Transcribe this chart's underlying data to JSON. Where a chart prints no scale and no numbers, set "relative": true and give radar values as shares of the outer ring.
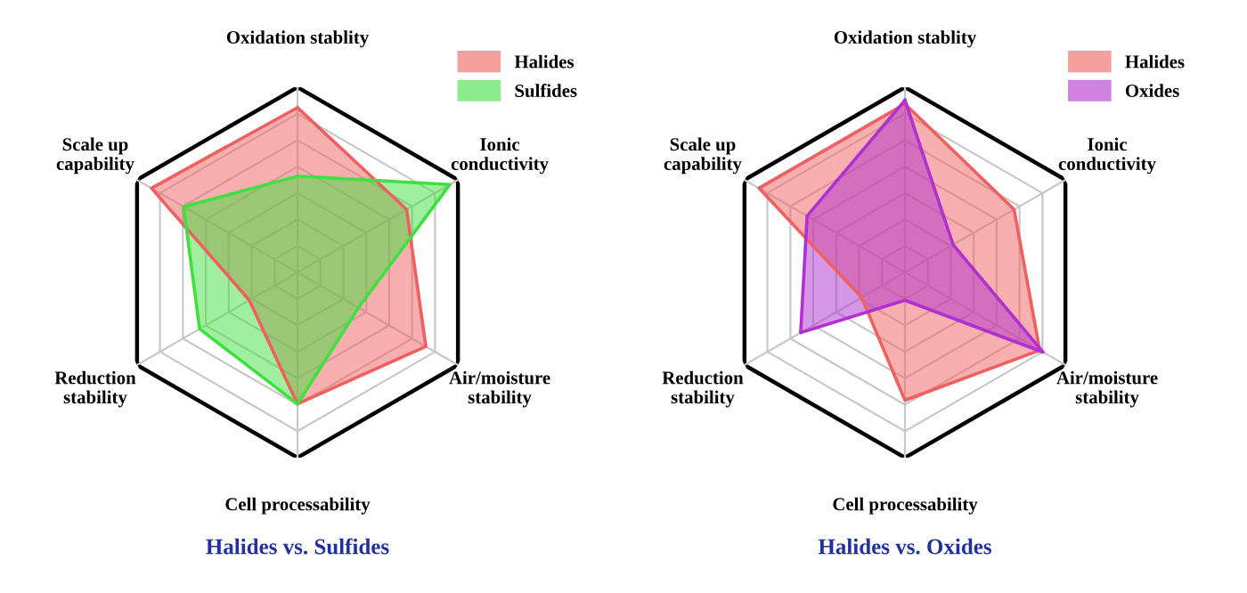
{
  "chart_data": [
    {
      "type": "radar",
      "relative": true,
      "title": "Halides vs. Sulfides",
      "legend": "top right",
      "categories": [
        "Oxidation stablity",
        "Ionic\nconductivity",
        "Air/moisture\nstability",
        "Cell processability",
        "Reduction\nstability",
        "Scale up\ncapability"
      ],
      "series": [
        {
          "name": "Halides",
          "color": "#f06060",
          "values": [
            0.89,
            0.68,
            0.8,
            0.71,
            0.3,
            0.91
          ]
        },
        {
          "name": "Sulfides",
          "color": "#40e040",
          "values": [
            0.52,
            0.95,
            0.38,
            0.71,
            0.61,
            0.71
          ]
        }
      ]
    },
    {
      "type": "radar",
      "relative": true,
      "title": "Halides vs. Oxides",
      "legend": "top right",
      "categories": [
        "Oxidation stablity",
        "Ionic\nconductivity",
        "Air/moisture\nstability",
        "Cell processability",
        "Reduction\nstability",
        "Scale up\ncapability"
      ],
      "series": [
        {
          "name": "Halides",
          "color": "#f06060",
          "values": [
            0.91,
            0.68,
            0.84,
            0.69,
            0.27,
            0.91
          ]
        },
        {
          "name": "Oxides",
          "color": "#b030d0",
          "values": [
            0.93,
            0.3,
            0.86,
            0.15,
            0.65,
            0.61
          ]
        }
      ]
    }
  ]
}
